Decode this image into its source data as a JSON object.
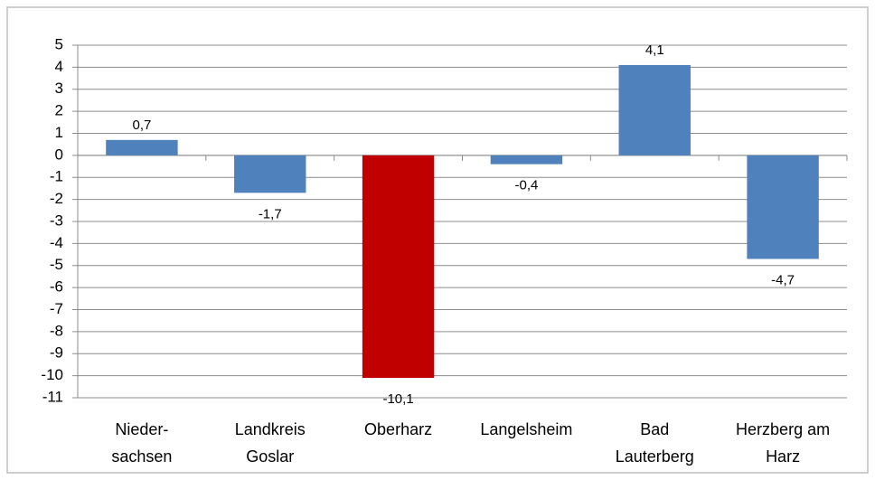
{
  "chart_data": {
    "type": "bar",
    "categories": [
      "Nieder-sachsen",
      "Landkreis Goslar",
      "Oberharz",
      "Langelsheim",
      "Bad Lauterberg",
      "Herzberg am Harz"
    ],
    "values": [
      0.7,
      -1.7,
      -10.1,
      -0.4,
      4.1,
      -4.7
    ],
    "value_labels": [
      "0,7",
      "-1,7",
      "-10,1",
      "-0,4",
      "4,1",
      "-4,7"
    ],
    "colors": [
      "#4f81bd",
      "#4f81bd",
      "#c00000",
      "#4f81bd",
      "#4f81bd",
      "#4f81bd"
    ],
    "ylim": [
      -11,
      5
    ],
    "yticks": [
      -11,
      -10,
      -9,
      -8,
      -7,
      -6,
      -5,
      -4,
      -3,
      -2,
      -1,
      0,
      1,
      2,
      3,
      4,
      5
    ],
    "grid": true
  }
}
